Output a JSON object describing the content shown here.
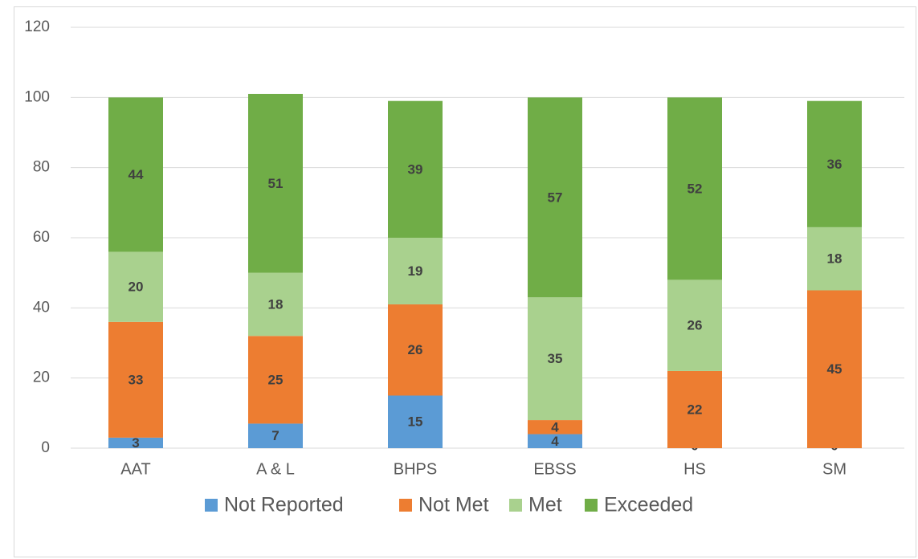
{
  "chart_data": {
    "type": "stacked_bar",
    "categories": [
      "AAT",
      "A & L",
      "BHPS",
      "EBSS",
      "HS",
      "SM"
    ],
    "series": [
      {
        "name": "Not Reported",
        "color": "#5b9bd5",
        "values": [
          3,
          7,
          15,
          4,
          0,
          0
        ]
      },
      {
        "name": "Not Met",
        "color": "#ed7d31",
        "values": [
          33,
          25,
          26,
          4,
          22,
          45
        ]
      },
      {
        "name": "Met",
        "color": "#a9d18e",
        "values": [
          20,
          18,
          19,
          35,
          26,
          18
        ]
      },
      {
        "name": "Exceeded",
        "color": "#70ad47",
        "values": [
          44,
          51,
          39,
          57,
          52,
          36
        ]
      }
    ],
    "ylim": [
      0,
      120
    ],
    "yticks": [
      0,
      20,
      40,
      60,
      80,
      100,
      120
    ],
    "grid": true,
    "legend": "bottom"
  }
}
